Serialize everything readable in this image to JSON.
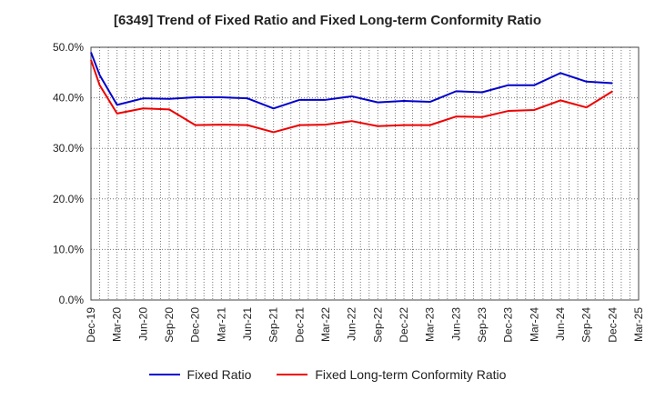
{
  "chart_data": {
    "type": "line",
    "title": "[6349]  Trend of Fixed Ratio and Fixed Long-term Conformity Ratio",
    "xlabel": "",
    "ylabel": "",
    "ylim": [
      0,
      50
    ],
    "yticks": [
      "0.0%",
      "10.0%",
      "20.0%",
      "30.0%",
      "40.0%",
      "50.0%"
    ],
    "x_tick_labels": [
      "Dec-19",
      "Mar-20",
      "Jun-20",
      "Sep-20",
      "Dec-20",
      "Mar-21",
      "Jun-21",
      "Sep-21",
      "Dec-21",
      "Mar-22",
      "Jun-22",
      "Sep-22",
      "Dec-22",
      "Mar-23",
      "Jun-23",
      "Sep-23",
      "Dec-23",
      "Mar-24",
      "Jun-24",
      "Sep-24",
      "Dec-24",
      "Mar-25"
    ],
    "x": [
      "Dec-19",
      "Jan-20",
      "Mar-20",
      "Jun-20",
      "Sep-20",
      "Dec-20",
      "Mar-21",
      "Jun-21",
      "Sep-21",
      "Dec-21",
      "Mar-22",
      "Jun-22",
      "Sep-22",
      "Dec-22",
      "Mar-23",
      "Jun-23",
      "Sep-23",
      "Dec-23",
      "Mar-24",
      "Jun-24",
      "Sep-24",
      "Dec-24"
    ],
    "grid": true,
    "legend_position": "bottom",
    "series": [
      {
        "name": "Fixed Ratio",
        "color": "#0000cc",
        "values": [
          49.0,
          44.5,
          38.6,
          39.9,
          39.8,
          40.1,
          40.1,
          39.9,
          37.9,
          39.6,
          39.6,
          40.3,
          39.1,
          39.4,
          39.2,
          41.3,
          41.1,
          42.5,
          42.5,
          44.9,
          43.2,
          42.9
        ]
      },
      {
        "name": "Fixed Long-term Conformity Ratio",
        "color": "#ee0000",
        "values": [
          47.5,
          42.5,
          36.9,
          37.9,
          37.7,
          34.6,
          34.7,
          34.6,
          33.2,
          34.6,
          34.7,
          35.4,
          34.4,
          34.6,
          34.6,
          36.3,
          36.2,
          37.4,
          37.6,
          39.5,
          38.1,
          41.3
        ]
      }
    ]
  }
}
